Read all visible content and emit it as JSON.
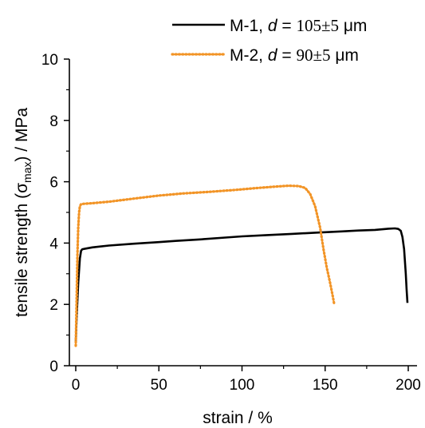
{
  "chart_data": {
    "type": "line",
    "xlabel": "strain / %",
    "ylabel": {
      "prefix": "tensile strength (σ",
      "subscript": "max",
      "suffix": ") / MPa"
    },
    "xlim": [
      0,
      200
    ],
    "ylim": [
      0,
      10
    ],
    "xticks": [
      0,
      50,
      100,
      150,
      200
    ],
    "yticks": [
      0,
      2,
      4,
      6,
      8,
      10
    ],
    "grid": false,
    "legend_position": "top-right",
    "series": [
      {
        "name": "M-1",
        "legend": {
          "name": "M-1, ",
          "var": "d",
          "equals": " = ",
          "value": "105±5",
          "unit": " μm"
        },
        "color": "#000000",
        "style": "solid",
        "x": [
          0.0,
          0.5,
          1.5,
          2.5,
          3.2,
          4.0,
          6.0,
          10.0,
          20.0,
          35.0,
          50.0,
          60.0,
          75.0,
          90.0,
          100.0,
          115.0,
          130.0,
          145.0,
          160.0,
          170.0,
          180.0,
          188.0,
          192.0,
          194.0,
          195.5,
          196.5,
          197.5,
          198.5,
          199.0,
          199.5
        ],
        "y": [
          0.75,
          1.5,
          2.7,
          3.5,
          3.75,
          3.8,
          3.82,
          3.86,
          3.92,
          3.98,
          4.03,
          4.07,
          4.12,
          4.18,
          4.22,
          4.26,
          4.3,
          4.34,
          4.38,
          4.41,
          4.43,
          4.47,
          4.48,
          4.46,
          4.4,
          4.2,
          3.8,
          3.0,
          2.5,
          2.05
        ]
      },
      {
        "name": "M-2",
        "legend": {
          "name": "M-2, ",
          "var": "d",
          "equals": " = ",
          "value": "90±5",
          "unit": " μm"
        },
        "color": "#f29426",
        "style": "dotted",
        "x": [
          0.0,
          0.5,
          1.0,
          1.5,
          2.0,
          2.5,
          3.2,
          5.0,
          10.0,
          20.0,
          35.0,
          50.0,
          65.0,
          80.0,
          95.0,
          110.0,
          120.0,
          128.0,
          134.0,
          138.0,
          141.0,
          144.0,
          147.0,
          149.0,
          151.0,
          153.0,
          154.5,
          155.5
        ],
        "y": [
          0.65,
          2.0,
          3.6,
          4.5,
          5.0,
          5.2,
          5.27,
          5.28,
          5.3,
          5.35,
          5.45,
          5.55,
          5.62,
          5.67,
          5.73,
          5.8,
          5.84,
          5.87,
          5.86,
          5.8,
          5.6,
          5.2,
          4.5,
          3.8,
          3.2,
          2.7,
          2.3,
          2.0
        ]
      }
    ]
  }
}
